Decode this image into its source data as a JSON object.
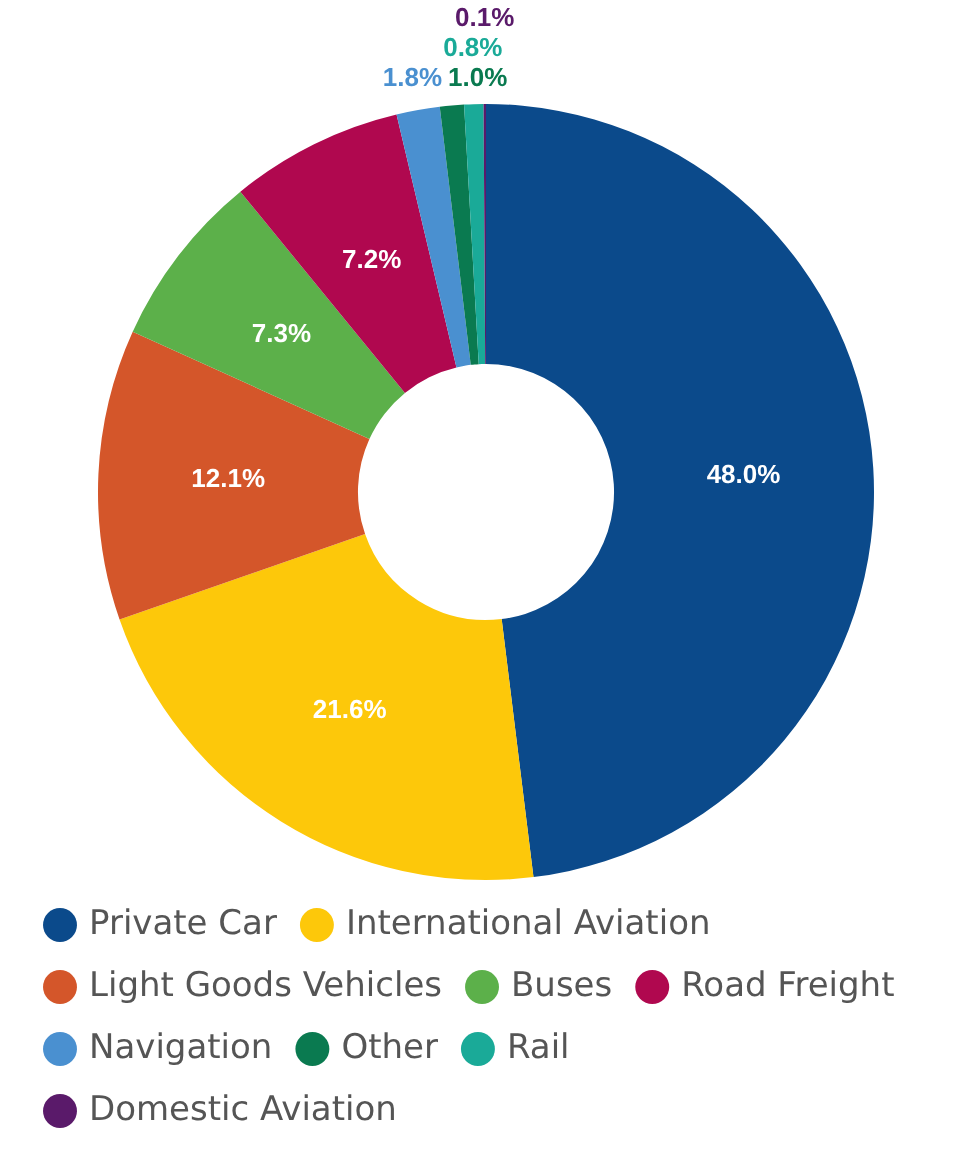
{
  "chart_data": {
    "type": "donut",
    "categories": [
      "Private Car",
      "International Aviation",
      "Light Goods Vehicles",
      "Buses",
      "Road Freight",
      "Navigation",
      "Other",
      "Rail",
      "Domestic Aviation"
    ],
    "values": [
      48.0,
      21.6,
      12.1,
      7.3,
      7.2,
      1.8,
      1.0,
      0.8,
      0.1
    ],
    "colors": [
      "#0b4a8b",
      "#fdc80a",
      "#d4562a",
      "#5cb04a",
      "#b0084f",
      "#4a90d0",
      "#0a7a50",
      "#1aaa98",
      "#5a1a6a"
    ],
    "value_labels": [
      "48.0%",
      "21.6%",
      "12.1%",
      "7.3%",
      "7.2%",
      "1.8%",
      "1.0%",
      "0.8%",
      "0.1%"
    ],
    "legend": "bottom"
  }
}
